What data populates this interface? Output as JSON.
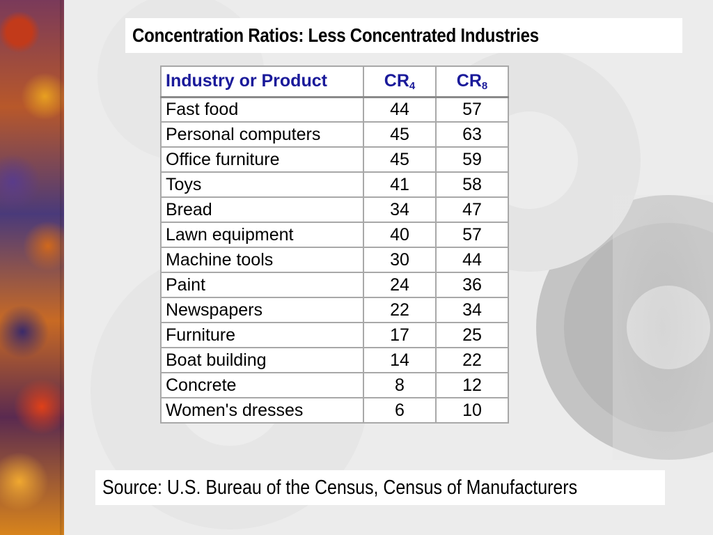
{
  "slide": {
    "title": "Concentration Ratios: Less Concentrated Industries",
    "source": "Source: U.S. Bureau of the Census, Census of Manufacturers"
  },
  "table": {
    "headers": {
      "industry": "Industry or Product",
      "cr4_base": "CR",
      "cr4_sub": "4",
      "cr8_base": "CR",
      "cr8_sub": "8"
    },
    "rows": [
      {
        "name": "Fast food",
        "cr4": "44",
        "cr8": "57"
      },
      {
        "name": "Personal computers",
        "cr4": "45",
        "cr8": "63"
      },
      {
        "name": "Office furniture",
        "cr4": "45",
        "cr8": "59"
      },
      {
        "name": "Toys",
        "cr4": "41",
        "cr8": "58"
      },
      {
        "name": "Bread",
        "cr4": "34",
        "cr8": "47"
      },
      {
        "name": "Lawn equipment",
        "cr4": "40",
        "cr8": "57"
      },
      {
        "name": "Machine tools",
        "cr4": "30",
        "cr8": "44"
      },
      {
        "name": "Paint",
        "cr4": "24",
        "cr8": "36"
      },
      {
        "name": "Newspapers",
        "cr4": "22",
        "cr8": "34"
      },
      {
        "name": "Furniture",
        "cr4": "17",
        "cr8": "25"
      },
      {
        "name": "Boat building",
        "cr4": "14",
        "cr8": "22"
      },
      {
        "name": "Concrete",
        "cr4": "8",
        "cr8": "12"
      },
      {
        "name": "Women's dresses",
        "cr4": "6",
        "cr8": "10"
      }
    ]
  },
  "colors": {
    "header_text": "#1a1a9a",
    "background": "#ececec"
  },
  "icons": {
    "background_art": "gear-icon",
    "side_decoration": "gear-collage"
  }
}
